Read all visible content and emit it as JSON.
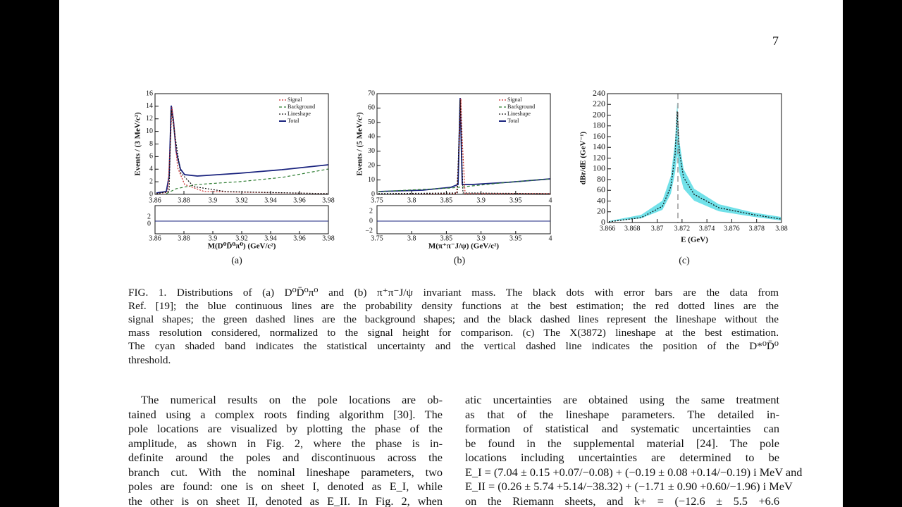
{
  "page_number": "7",
  "figure": {
    "panels": [
      {
        "label": "(a)",
        "y_label": "Events / (3 MeV/c²)",
        "x_label": "M(D⁰D̄⁰π⁰) (GeV/c²)",
        "xticks": [
          "3.86",
          "3.88",
          "3.9",
          "3.92",
          "3.94",
          "3.96",
          "3.98"
        ],
        "yticks": [
          "0",
          "2",
          "4",
          "6",
          "8",
          "10",
          "12",
          "14",
          "16"
        ],
        "residual_yticks": [
          "2",
          "0"
        ],
        "legend": [
          "Signal",
          "Background",
          "Lineshape",
          "Total"
        ]
      },
      {
        "label": "(b)",
        "y_label": "Events / (5 MeV/c²)",
        "x_label": "M(π⁺π⁻J/ψ) (GeV/c²)",
        "xticks": [
          "3.75",
          "3.8",
          "3.85",
          "3.9",
          "3.95",
          "4"
        ],
        "yticks": [
          "0",
          "10",
          "20",
          "30",
          "40",
          "50",
          "60",
          "70"
        ],
        "residual_yticks": [
          "2",
          "0",
          "−2"
        ],
        "legend": [
          "Signal",
          "Background",
          "Lineshape",
          "Total"
        ]
      },
      {
        "label": "(c)",
        "y_label": "dBr/dE (GeV⁻¹)",
        "x_label": "E (GeV)",
        "xticks": [
          "3.866",
          "3.868",
          "3.87",
          "3.872",
          "3.874",
          "3.876",
          "3.878",
          "3.88"
        ],
        "yticks": [
          "0",
          "20",
          "40",
          "60",
          "80",
          "100",
          "120",
          "140",
          "160",
          "180",
          "200",
          "220",
          "240"
        ]
      }
    ],
    "caption": [
      "FIG. 1. Distributions of (a) D⁰D̄⁰π⁰ and (b) π⁺π⁻J/ψ invariant mass. The black dots with error bars are the data from",
      "Ref. [19]; the blue continuous lines are the probability density functions at the best estimation; the red dotted lines are the",
      "signal shapes; the green dashed lines are the background shapes; and the black dashed lines represent the lineshape without the",
      "mass resolution considered, normalized to the signal height for comparison. (c) The X(3872) lineshape at the best estimation.",
      "The cyan shaded band indicates the statistical uncertainty and the vertical dashed line indicates the position of the D*⁰D̄⁰",
      "threshold."
    ]
  },
  "body": {
    "left": [
      "The numerical results on the pole locations are ob-",
      "tained using a complex roots finding algorithm [30]. The",
      "pole locations are visualized by plotting the phase of the",
      "amplitude, as shown in Fig. 2, where the phase is in-",
      "definite around the poles and discontinuous across the",
      "branch cut. With the nominal lineshape parameters, two",
      "poles are found: one is on sheet I, denoted as E_I, while",
      "the other is on sheet II, denoted as E_II. In Fig. 2, when"
    ],
    "right": [
      "atic uncertainties are obtained using the same treatment",
      "as that of the lineshape parameters. The detailed in-",
      "formation of statistical and systematic uncertainties can",
      "be found in the supplemental material [24]. The pole",
      "locations including uncertainties are determined to be",
      "E_I = (7.04 ± 0.15 +0.07/−0.08) + (−0.19 ± 0.08 +0.14/−0.19) i MeV and",
      "E_II = (0.26 ± 5.74 +5.14/−38.32) + (−1.71 ± 0.90 +0.60/−1.96) i MeV",
      "on the Riemann sheets, and k+ = (−12.6 ± 5.5 +6.6"
    ]
  }
}
